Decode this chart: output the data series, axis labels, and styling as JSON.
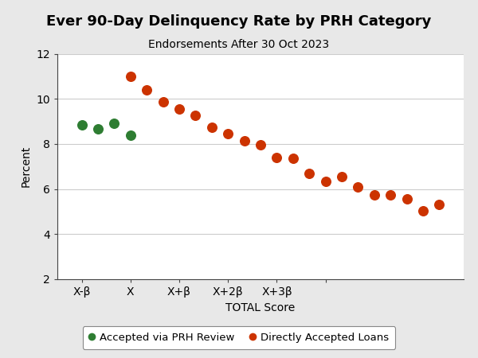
{
  "title": "Ever 90-Day Delinquency Rate by PRH Category",
  "subtitle": "Endorsements After 30 Oct 2023",
  "xlabel": "TOTAL Score",
  "ylabel": "Percent",
  "ylim": [
    2,
    12
  ],
  "yticks": [
    2,
    4,
    6,
    8,
    10,
    12
  ],
  "figure_bg_color": "#e8e8e8",
  "plot_bg_color": "#ffffff",
  "green_series": {
    "label": "Accepted via PRH Review",
    "color": "#2e7d32",
    "x": [
      -3,
      -2,
      -1,
      0
    ],
    "y": [
      8.85,
      8.65,
      8.9,
      8.4
    ]
  },
  "orange_series": {
    "label": "Directly Accepted Loans",
    "color": "#cc3300",
    "x": [
      0,
      1,
      2,
      3,
      4,
      5,
      6,
      7,
      8,
      9,
      10,
      11,
      12,
      13,
      14,
      15,
      16,
      17,
      18,
      19
    ],
    "y": [
      11.0,
      10.4,
      9.85,
      9.55,
      9.25,
      8.75,
      8.45,
      8.15,
      7.95,
      7.4,
      7.35,
      6.7,
      6.35,
      6.55,
      6.1,
      5.75,
      5.75,
      5.55,
      5.05,
      5.3
    ]
  },
  "xtick_positions": [
    -3,
    0,
    3,
    6,
    9,
    12
  ],
  "xtick_labels": [
    "X-β",
    "X",
    "X+β",
    "X+2β",
    "X+3β",
    ""
  ],
  "xlim": [
    -4.5,
    20.5
  ],
  "marker_size": 70,
  "title_fontsize": 13,
  "subtitle_fontsize": 10,
  "axis_label_fontsize": 10,
  "tick_fontsize": 10
}
